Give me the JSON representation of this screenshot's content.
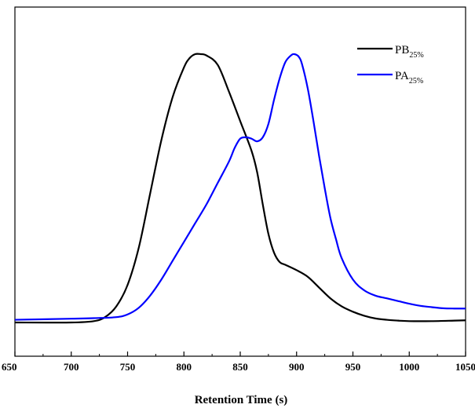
{
  "chart_data": {
    "type": "line",
    "xlabel": "Retention Time (s)",
    "ylabel": "",
    "xlim": [
      650,
      1050
    ],
    "x_ticks": [
      650,
      700,
      750,
      800,
      850,
      900,
      950,
      1000,
      1050
    ],
    "y_ticks_shown": false,
    "grid": false,
    "legend_position": "top-right",
    "series": [
      {
        "name_main": "PB",
        "name_sub": "25%",
        "color": "#000000",
        "points": [
          [
            650,
            0.0
          ],
          [
            700,
            0.0
          ],
          [
            720,
            0.005
          ],
          [
            730,
            0.02
          ],
          [
            740,
            0.06
          ],
          [
            750,
            0.14
          ],
          [
            760,
            0.28
          ],
          [
            770,
            0.48
          ],
          [
            780,
            0.68
          ],
          [
            790,
            0.84
          ],
          [
            800,
            0.95
          ],
          [
            805,
            0.985
          ],
          [
            810,
            1.0
          ],
          [
            815,
            1.0
          ],
          [
            820,
            0.995
          ],
          [
            830,
            0.96
          ],
          [
            840,
            0.86
          ],
          [
            850,
            0.75
          ],
          [
            860,
            0.64
          ],
          [
            865,
            0.56
          ],
          [
            870,
            0.44
          ],
          [
            875,
            0.33
          ],
          [
            880,
            0.26
          ],
          [
            885,
            0.225
          ],
          [
            890,
            0.215
          ],
          [
            900,
            0.195
          ],
          [
            910,
            0.17
          ],
          [
            920,
            0.13
          ],
          [
            930,
            0.09
          ],
          [
            940,
            0.06
          ],
          [
            950,
            0.04
          ],
          [
            960,
            0.025
          ],
          [
            970,
            0.015
          ],
          [
            980,
            0.01
          ],
          [
            990,
            0.007
          ],
          [
            1000,
            0.005
          ],
          [
            1020,
            0.005
          ],
          [
            1040,
            0.007
          ],
          [
            1050,
            0.008
          ]
        ]
      },
      {
        "name_main": "PA",
        "name_sub": "25%",
        "color": "#0000ff",
        "points": [
          [
            650,
            0.01
          ],
          [
            700,
            0.014
          ],
          [
            720,
            0.016
          ],
          [
            740,
            0.02
          ],
          [
            750,
            0.03
          ],
          [
            760,
            0.055
          ],
          [
            770,
            0.1
          ],
          [
            780,
            0.16
          ],
          [
            790,
            0.23
          ],
          [
            800,
            0.3
          ],
          [
            810,
            0.37
          ],
          [
            820,
            0.44
          ],
          [
            830,
            0.52
          ],
          [
            840,
            0.6
          ],
          [
            845,
            0.65
          ],
          [
            850,
            0.685
          ],
          [
            855,
            0.69
          ],
          [
            860,
            0.685
          ],
          [
            865,
            0.675
          ],
          [
            870,
            0.69
          ],
          [
            875,
            0.74
          ],
          [
            880,
            0.83
          ],
          [
            885,
            0.91
          ],
          [
            890,
            0.97
          ],
          [
            895,
            0.995
          ],
          [
            898,
            1.0
          ],
          [
            902,
            0.99
          ],
          [
            905,
            0.96
          ],
          [
            910,
            0.87
          ],
          [
            915,
            0.75
          ],
          [
            920,
            0.62
          ],
          [
            925,
            0.5
          ],
          [
            930,
            0.39
          ],
          [
            935,
            0.31
          ],
          [
            940,
            0.24
          ],
          [
            950,
            0.16
          ],
          [
            960,
            0.12
          ],
          [
            970,
            0.1
          ],
          [
            980,
            0.09
          ],
          [
            990,
            0.08
          ],
          [
            1000,
            0.07
          ],
          [
            1010,
            0.062
          ],
          [
            1020,
            0.057
          ],
          [
            1030,
            0.053
          ],
          [
            1040,
            0.052
          ],
          [
            1050,
            0.052
          ]
        ]
      }
    ]
  }
}
